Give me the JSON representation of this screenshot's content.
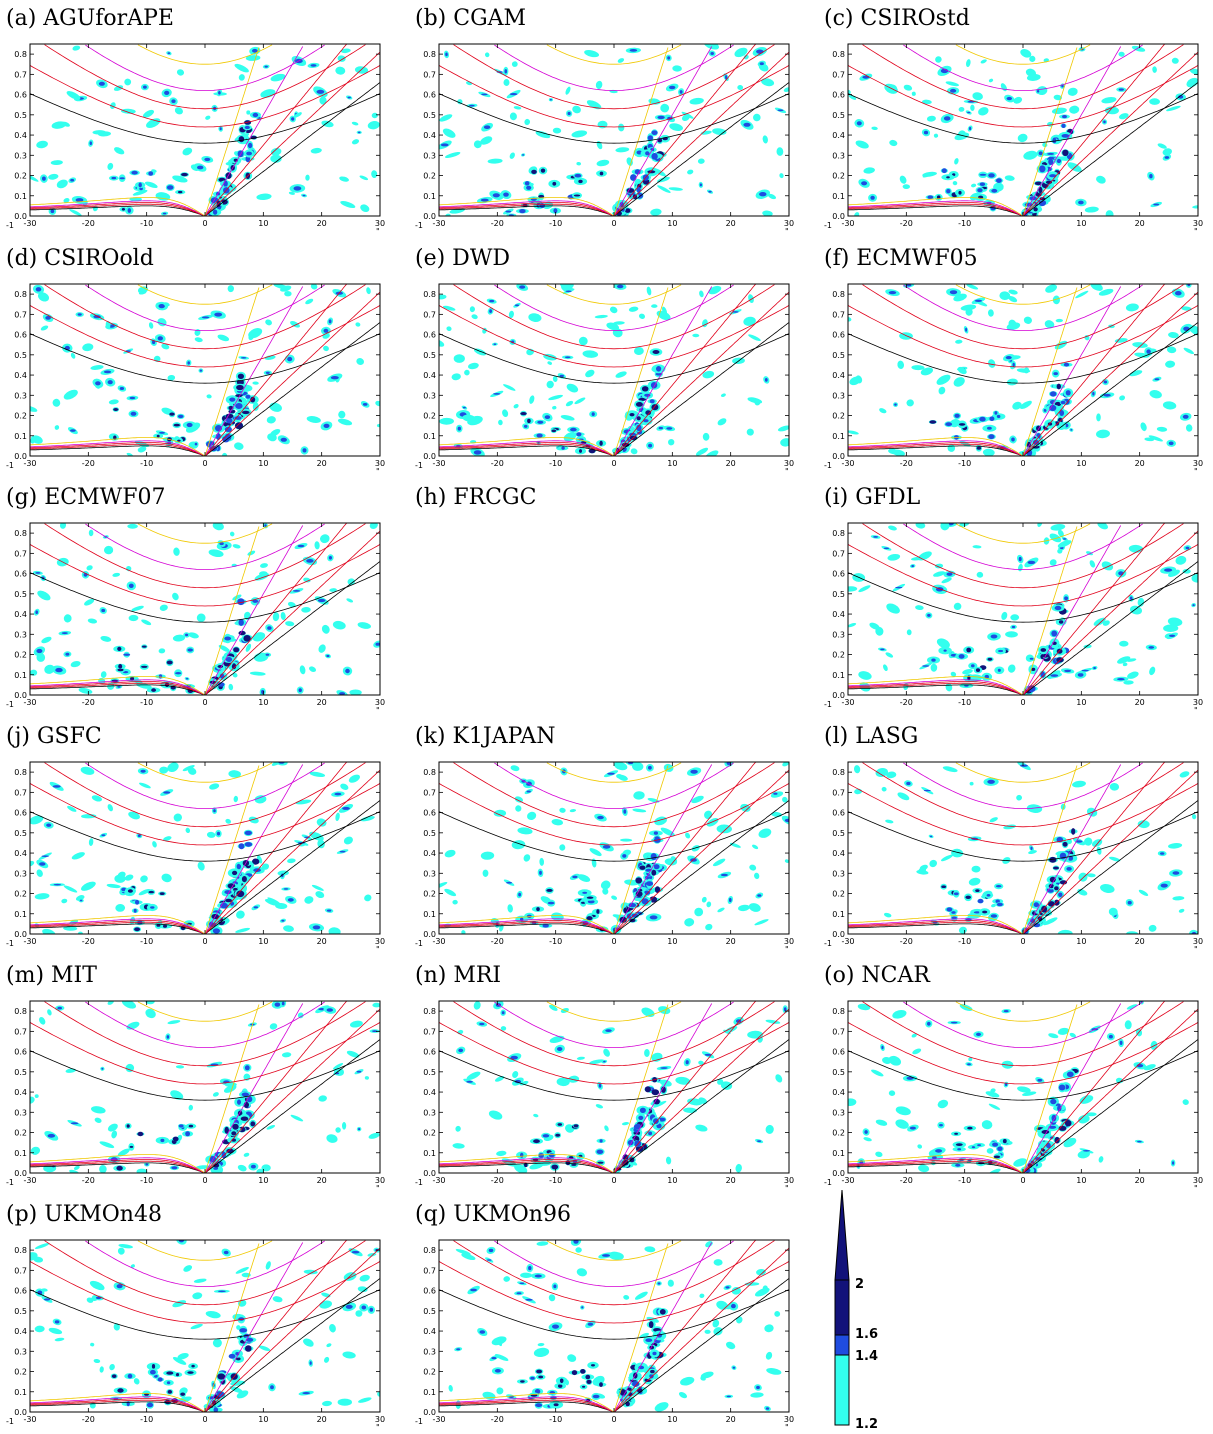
{
  "chart_data": {
    "type": "heatmap",
    "layout": "grid of filled-contour panels, 3 columns",
    "x_ticks": [
      "-30",
      "-20",
      "-10",
      "0",
      "10",
      "20",
      "30"
    ],
    "y_ticks": [
      "0.0",
      "0.1",
      "0.2",
      "0.3",
      "0.4",
      "0.5",
      "0.6",
      "0.7",
      "0.8"
    ],
    "corner_labels": {
      "bottom_left": "-1",
      "bottom_right": "\""
    },
    "xlim": [
      -30,
      30
    ],
    "ylim": [
      0,
      0.85
    ],
    "contour_levels": [
      1.2,
      1.4,
      1.6,
      2
    ],
    "contour_colors": [
      "#33ffee",
      "#1f4ce0",
      "#12127a"
    ],
    "overlay_curve_colors": {
      "dispersion_black": "#000000",
      "dispersion_red": "#e0001a",
      "dispersion_magenta": "#d400d4",
      "dispersion_yellow": "#f0c800"
    },
    "colorbar": {
      "tick_labels": [
        "2",
        "1.6",
        "1.4",
        "1.2"
      ],
      "colors_top_to_bottom": [
        "#12127a",
        "#1f4ce0",
        "#33ffee"
      ],
      "extend": "max"
    },
    "panels": [
      {
        "label": "(a) AGUforAPE",
        "has_data": true
      },
      {
        "label": "(b) CGAM",
        "has_data": true
      },
      {
        "label": "(c) CSIROstd",
        "has_data": true
      },
      {
        "label": "(d) CSIROold",
        "has_data": true
      },
      {
        "label": "(e) DWD",
        "has_data": true
      },
      {
        "label": "(f) ECMWF05",
        "has_data": true
      },
      {
        "label": "(g) ECMWF07",
        "has_data": true
      },
      {
        "label": "(h) FRCGC",
        "has_data": false
      },
      {
        "label": "(i) GFDL",
        "has_data": true
      },
      {
        "label": "(j) GSFC",
        "has_data": true
      },
      {
        "label": "(k) K1JAPAN",
        "has_data": true
      },
      {
        "label": "(l) LASG",
        "has_data": true
      },
      {
        "label": "(m) MIT",
        "has_data": true
      },
      {
        "label": "(n) MRI",
        "has_data": true
      },
      {
        "label": "(o) NCAR",
        "has_data": true
      },
      {
        "label": "(p) UKMOn48",
        "has_data": true
      },
      {
        "label": "(q) UKMOn96",
        "has_data": true
      }
    ]
  }
}
